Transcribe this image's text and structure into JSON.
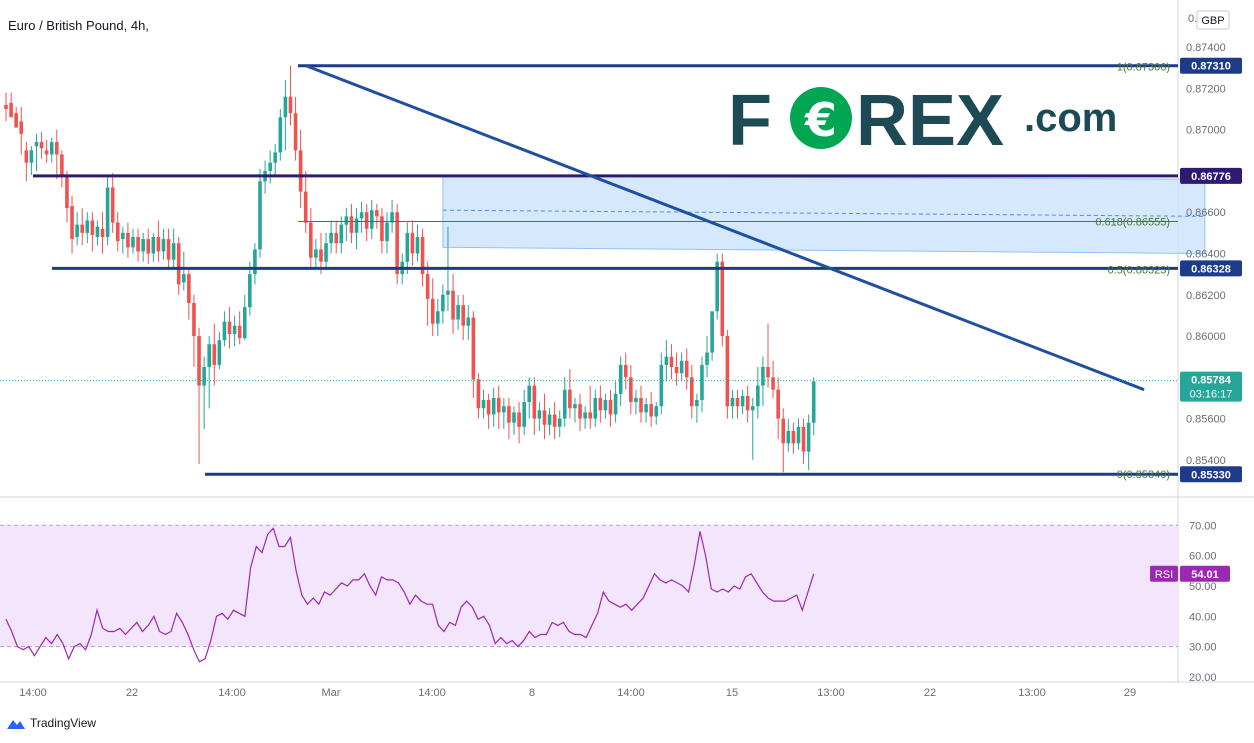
{
  "header": {
    "symbol_title": "Euro / British Pound, 4h,",
    "currency_button": "GBP",
    "top_price_clipped": "0.87600"
  },
  "logo": {
    "text_f": "F",
    "text_o_symbol": "€",
    "text_rex": "REX",
    "text_com": ".com",
    "color_dark": "#1d4a55",
    "color_green": "#00a651"
  },
  "footer": {
    "brand": "TradingView"
  },
  "colors": {
    "bull": "#26a69a",
    "bear": "#ef5350",
    "trendline": "#1e4fa0",
    "resistance": "#1e3a8a",
    "hline_purple": "#2e1a73",
    "fib_green": "#4a7a2c",
    "zone_fill": "#cfe5fb",
    "rsi_line": "#9c27b0",
    "rsi_band": "#f3e5fb",
    "label_blue": "#1e3a8a",
    "label_purple": "#2e1a73",
    "label_teal": "#26a69a",
    "rsi_label": "#9c27b0"
  },
  "chart_data": {
    "type": "candlestick",
    "symbol": "Euro / British Pound",
    "timeframe": "4h",
    "y_ticks": [
      "0.87400",
      "0.87200",
      "0.87000",
      "0.86600",
      "0.86400",
      "0.86200",
      "0.86000",
      "0.85600",
      "0.85400"
    ],
    "ylim": [
      0.8522,
      0.8758
    ],
    "x_tick_labels": [
      "14:00",
      "22",
      "14:00",
      "Mar",
      "14:00",
      "8",
      "14:00",
      "15",
      "13:00",
      "22",
      "13:00",
      "29"
    ],
    "price_labels": [
      {
        "value": "0.87310",
        "kind": "line"
      },
      {
        "value": "0.86776",
        "kind": "purple"
      },
      {
        "value": "0.86328",
        "kind": "line"
      },
      {
        "value": "0.85784",
        "kind": "last",
        "countdown": "03:16:17"
      },
      {
        "value": "0.85330",
        "kind": "line"
      }
    ],
    "horizontal_lines": [
      {
        "price": 0.8731,
        "style": "resistance"
      },
      {
        "price": 0.86776,
        "style": "purple"
      },
      {
        "price": 0.86328,
        "style": "resistance"
      },
      {
        "price": 0.8533,
        "style": "resistance"
      }
    ],
    "trendline": {
      "start": {
        "candle": 63,
        "price": 0.8731
      },
      "end": {
        "candle": 226,
        "price": 0.8574
      }
    },
    "fib_levels": [
      {
        "label": "1(0.87306)",
        "price": 0.87306
      },
      {
        "label": "0.618(0.86555)",
        "price": 0.86555
      },
      {
        "label": "0.5(0.86323)",
        "price": 0.86323
      },
      {
        "label": "0(0.85340)",
        "price": 0.8534
      }
    ],
    "zone": {
      "start_candle": 86,
      "end_candle": 236,
      "top_start": 0.86776,
      "top_end": 0.8676,
      "bottom_start": 0.8643,
      "bottom_end": 0.864,
      "mid_start": 0.8661,
      "mid_end": 0.8658
    },
    "candles": [
      [
        0.8712,
        0.8718,
        0.871,
        0.8704
      ],
      [
        0.8713,
        0.8718,
        0.8706,
        0.8708
      ],
      [
        0.8708,
        0.8711,
        0.8701,
        0.8703
      ],
      [
        0.8704,
        0.8711,
        0.8698,
        0.8688
      ],
      [
        0.869,
        0.8694,
        0.8684,
        0.8675
      ],
      [
        0.8684,
        0.8692,
        0.869,
        0.8678
      ],
      [
        0.8692,
        0.8698,
        0.8694,
        0.868
      ],
      [
        0.8694,
        0.8699,
        0.8691,
        0.8686
      ],
      [
        0.869,
        0.8695,
        0.8688,
        0.8684
      ],
      [
        0.8688,
        0.8696,
        0.8694,
        0.8684
      ],
      [
        0.8694,
        0.87,
        0.8688,
        0.8676
      ],
      [
        0.8688,
        0.869,
        0.8677,
        0.8672
      ],
      [
        0.8677,
        0.868,
        0.8662,
        0.8655
      ],
      [
        0.8663,
        0.8668,
        0.8647,
        0.864
      ],
      [
        0.8648,
        0.866,
        0.8654,
        0.8644
      ],
      [
        0.8654,
        0.8662,
        0.865,
        0.8644
      ],
      [
        0.865,
        0.866,
        0.8656,
        0.8645
      ],
      [
        0.8656,
        0.866,
        0.8649,
        0.8641
      ],
      [
        0.8648,
        0.8656,
        0.8653,
        0.8644
      ],
      [
        0.8652,
        0.866,
        0.8648,
        0.864
      ],
      [
        0.8648,
        0.8678,
        0.8672,
        0.8644
      ],
      [
        0.8672,
        0.8679,
        0.8655,
        0.865
      ],
      [
        0.8655,
        0.866,
        0.8646,
        0.8641
      ],
      [
        0.8647,
        0.8653,
        0.865,
        0.864
      ],
      [
        0.865,
        0.8655,
        0.8643,
        0.8638
      ],
      [
        0.8643,
        0.8652,
        0.8648,
        0.864
      ],
      [
        0.8648,
        0.8652,
        0.8641,
        0.8636
      ],
      [
        0.8641,
        0.865,
        0.8647,
        0.8636
      ],
      [
        0.8647,
        0.8652,
        0.864,
        0.8635
      ],
      [
        0.864,
        0.865,
        0.8648,
        0.8636
      ],
      [
        0.8648,
        0.8656,
        0.8641,
        0.8636
      ],
      [
        0.8641,
        0.8652,
        0.8647,
        0.8637
      ],
      [
        0.8647,
        0.8652,
        0.8637,
        0.8632
      ],
      [
        0.8637,
        0.8652,
        0.8645,
        0.8633
      ],
      [
        0.8645,
        0.8648,
        0.8625,
        0.862
      ],
      [
        0.8626,
        0.8641,
        0.863,
        0.8622
      ],
      [
        0.863,
        0.8633,
        0.8616,
        0.8608
      ],
      [
        0.8616,
        0.862,
        0.86,
        0.8585
      ],
      [
        0.86,
        0.8604,
        0.8576,
        0.8538
      ],
      [
        0.8576,
        0.859,
        0.8585,
        0.8555
      ],
      [
        0.8585,
        0.86,
        0.8596,
        0.8565
      ],
      [
        0.8596,
        0.8606,
        0.8586,
        0.8576
      ],
      [
        0.8586,
        0.8602,
        0.8598,
        0.8584
      ],
      [
        0.8598,
        0.8612,
        0.8607,
        0.8595
      ],
      [
        0.8607,
        0.8614,
        0.8601,
        0.8594
      ],
      [
        0.8601,
        0.861,
        0.8605,
        0.8595
      ],
      [
        0.8605,
        0.8612,
        0.8599,
        0.8596
      ],
      [
        0.8599,
        0.862,
        0.8614,
        0.8598
      ],
      [
        0.8614,
        0.8636,
        0.863,
        0.861
      ],
      [
        0.863,
        0.8645,
        0.8642,
        0.8625
      ],
      [
        0.8642,
        0.8681,
        0.8675,
        0.8638
      ],
      [
        0.8675,
        0.8685,
        0.868,
        0.8669
      ],
      [
        0.868,
        0.869,
        0.8684,
        0.8674
      ],
      [
        0.8684,
        0.8693,
        0.8689,
        0.8678
      ],
      [
        0.8689,
        0.871,
        0.8706,
        0.8685
      ],
      [
        0.8706,
        0.8724,
        0.8716,
        0.869
      ],
      [
        0.8716,
        0.8731,
        0.8708,
        0.8702
      ],
      [
        0.8708,
        0.8716,
        0.869,
        0.8685
      ],
      [
        0.869,
        0.87,
        0.867,
        0.8662
      ],
      [
        0.867,
        0.868,
        0.8655,
        0.865
      ],
      [
        0.8655,
        0.8662,
        0.8638,
        0.8632
      ],
      [
        0.8638,
        0.8647,
        0.8642,
        0.8633
      ],
      [
        0.8642,
        0.865,
        0.8636,
        0.863
      ],
      [
        0.8636,
        0.865,
        0.8645,
        0.8632
      ],
      [
        0.8645,
        0.8656,
        0.865,
        0.864
      ],
      [
        0.865,
        0.8656,
        0.8645,
        0.864
      ],
      [
        0.8645,
        0.8658,
        0.8654,
        0.864
      ],
      [
        0.8654,
        0.8662,
        0.8658,
        0.8646
      ],
      [
        0.8658,
        0.8664,
        0.865,
        0.8645
      ],
      [
        0.865,
        0.8662,
        0.8657,
        0.8642
      ],
      [
        0.8657,
        0.8665,
        0.866,
        0.865
      ],
      [
        0.866,
        0.8664,
        0.8652,
        0.8646
      ],
      [
        0.8652,
        0.8666,
        0.8661,
        0.8647
      ],
      [
        0.8661,
        0.8664,
        0.8658,
        0.8652
      ],
      [
        0.8658,
        0.8662,
        0.8646,
        0.864
      ],
      [
        0.8646,
        0.866,
        0.8655,
        0.864
      ],
      [
        0.8655,
        0.8666,
        0.866,
        0.865
      ],
      [
        0.866,
        0.8664,
        0.863,
        0.8625
      ],
      [
        0.863,
        0.864,
        0.8636,
        0.8625
      ],
      [
        0.8636,
        0.8655,
        0.865,
        0.863
      ],
      [
        0.865,
        0.8656,
        0.864,
        0.8634
      ],
      [
        0.864,
        0.8654,
        0.8648,
        0.8636
      ],
      [
        0.8648,
        0.8652,
        0.863,
        0.8624
      ],
      [
        0.863,
        0.8636,
        0.8618,
        0.8605
      ],
      [
        0.8618,
        0.8628,
        0.8606,
        0.86
      ],
      [
        0.8606,
        0.8618,
        0.8612,
        0.86
      ],
      [
        0.8612,
        0.8625,
        0.862,
        0.8606
      ],
      [
        0.862,
        0.8653,
        0.8622,
        0.8612
      ],
      [
        0.8622,
        0.863,
        0.8608,
        0.8601
      ],
      [
        0.8608,
        0.862,
        0.8615,
        0.8603
      ],
      [
        0.8615,
        0.862,
        0.8605,
        0.8598
      ],
      [
        0.8605,
        0.8615,
        0.8609,
        0.8598
      ],
      [
        0.8609,
        0.8612,
        0.8579,
        0.857
      ],
      [
        0.8579,
        0.8582,
        0.8565,
        0.856
      ],
      [
        0.8565,
        0.8574,
        0.8569,
        0.856
      ],
      [
        0.8569,
        0.8572,
        0.8562,
        0.8555
      ],
      [
        0.8562,
        0.8575,
        0.857,
        0.8556
      ],
      [
        0.857,
        0.8576,
        0.8563,
        0.8555
      ],
      [
        0.8563,
        0.857,
        0.8566,
        0.8555
      ],
      [
        0.8566,
        0.857,
        0.8558,
        0.855
      ],
      [
        0.8558,
        0.8566,
        0.8563,
        0.8552
      ],
      [
        0.8563,
        0.8568,
        0.8556,
        0.8548
      ],
      [
        0.8556,
        0.8574,
        0.8568,
        0.8552
      ],
      [
        0.8568,
        0.858,
        0.8576,
        0.856
      ],
      [
        0.8576,
        0.858,
        0.856,
        0.8552
      ],
      [
        0.856,
        0.8568,
        0.8564,
        0.8554
      ],
      [
        0.8564,
        0.8572,
        0.8557,
        0.855
      ],
      [
        0.8557,
        0.8565,
        0.8562,
        0.8552
      ],
      [
        0.8562,
        0.8568,
        0.8556,
        0.855
      ],
      [
        0.8556,
        0.8564,
        0.856,
        0.8551
      ],
      [
        0.856,
        0.858,
        0.8574,
        0.8556
      ],
      [
        0.8574,
        0.8584,
        0.8565,
        0.856
      ],
      [
        0.8565,
        0.857,
        0.8567,
        0.8558
      ],
      [
        0.8567,
        0.8572,
        0.856,
        0.8554
      ],
      [
        0.856,
        0.8566,
        0.8563,
        0.8555
      ],
      [
        0.8563,
        0.8576,
        0.856,
        0.8555
      ],
      [
        0.856,
        0.8574,
        0.857,
        0.8556
      ],
      [
        0.857,
        0.8576,
        0.8564,
        0.8558
      ],
      [
        0.8564,
        0.8572,
        0.8569,
        0.856
      ],
      [
        0.8569,
        0.8574,
        0.8562,
        0.8556
      ],
      [
        0.8562,
        0.8578,
        0.8572,
        0.8558
      ],
      [
        0.8572,
        0.859,
        0.8586,
        0.8566
      ],
      [
        0.8586,
        0.8592,
        0.858,
        0.8574
      ],
      [
        0.858,
        0.8586,
        0.8568,
        0.8562
      ],
      [
        0.8568,
        0.8574,
        0.857,
        0.8562
      ],
      [
        0.857,
        0.8576,
        0.8563,
        0.8558
      ],
      [
        0.8563,
        0.857,
        0.8567,
        0.8558
      ],
      [
        0.8567,
        0.8573,
        0.8561,
        0.8556
      ],
      [
        0.8561,
        0.8568,
        0.8566,
        0.8557
      ],
      [
        0.8566,
        0.8592,
        0.8586,
        0.8562
      ],
      [
        0.8586,
        0.8598,
        0.859,
        0.8578
      ],
      [
        0.859,
        0.8596,
        0.8585,
        0.8579
      ],
      [
        0.8585,
        0.8592,
        0.8582,
        0.8576
      ],
      [
        0.8582,
        0.8592,
        0.8588,
        0.8578
      ],
      [
        0.8588,
        0.8594,
        0.858,
        0.8574
      ],
      [
        0.858,
        0.8586,
        0.8566,
        0.856
      ],
      [
        0.8566,
        0.8572,
        0.8569,
        0.8558
      ],
      [
        0.8569,
        0.859,
        0.8586,
        0.8563
      ],
      [
        0.8586,
        0.86,
        0.8592,
        0.858
      ],
      [
        0.8592,
        0.8606,
        0.8612,
        0.8588
      ],
      [
        0.8612,
        0.864,
        0.8636,
        0.8608
      ],
      [
        0.8636,
        0.864,
        0.86,
        0.8595
      ],
      [
        0.86,
        0.8603,
        0.8566,
        0.856
      ],
      [
        0.8566,
        0.8574,
        0.857,
        0.856
      ],
      [
        0.857,
        0.8574,
        0.8566,
        0.856
      ],
      [
        0.8566,
        0.8574,
        0.8571,
        0.8562
      ],
      [
        0.8571,
        0.8576,
        0.8564,
        0.8558
      ],
      [
        0.8564,
        0.857,
        0.8566,
        0.854
      ],
      [
        0.8566,
        0.8585,
        0.8576,
        0.856
      ],
      [
        0.8576,
        0.859,
        0.8585,
        0.8566
      ],
      [
        0.8585,
        0.8606,
        0.858,
        0.8575
      ],
      [
        0.858,
        0.8588,
        0.8574,
        0.857
      ],
      [
        0.8574,
        0.858,
        0.856,
        0.855
      ],
      [
        0.856,
        0.8565,
        0.8548,
        0.8534
      ],
      [
        0.8548,
        0.856,
        0.8554,
        0.8544
      ],
      [
        0.8554,
        0.8558,
        0.8548,
        0.8543
      ],
      [
        0.8548,
        0.856,
        0.8556,
        0.8545
      ],
      [
        0.8556,
        0.856,
        0.8544,
        0.8538
      ],
      [
        0.8544,
        0.8562,
        0.8558,
        0.8535
      ],
      [
        0.8558,
        0.858,
        0.8578,
        0.8552
      ]
    ],
    "rsi": {
      "label": "RSI",
      "value": "54.01",
      "y_ticks": [
        "70.00",
        "60.00",
        "50.00",
        "40.00",
        "30.00",
        "20.00"
      ],
      "ylim": [
        19,
        79
      ],
      "band": [
        30,
        70
      ],
      "values": [
        39,
        35,
        30,
        29,
        30,
        27,
        30,
        33,
        31,
        34,
        31,
        26,
        30,
        31,
        29,
        34,
        42,
        36,
        35,
        35,
        36,
        34,
        36,
        38,
        35,
        37,
        40,
        35,
        34,
        35,
        41,
        38,
        34,
        29,
        25,
        26,
        32,
        40,
        41,
        39,
        42,
        41,
        40,
        56,
        63,
        61,
        67,
        69,
        63,
        63,
        66,
        55,
        47,
        44,
        46,
        44,
        48,
        47,
        49,
        51,
        50,
        52,
        52,
        54,
        50,
        47,
        53,
        52,
        52,
        51,
        48,
        44,
        47,
        45,
        44,
        44,
        37,
        35,
        38,
        37,
        43,
        45,
        43,
        39,
        40,
        37,
        31,
        33,
        31,
        32,
        30,
        32,
        35,
        33,
        34,
        34,
        38,
        37,
        38,
        35,
        34,
        34,
        33,
        37,
        41,
        48,
        45,
        44,
        43,
        44,
        42,
        44,
        46,
        50,
        54,
        52,
        51,
        52,
        51,
        50,
        48,
        57,
        68,
        60,
        49,
        48,
        49,
        48,
        50,
        49,
        53,
        54,
        51,
        48,
        46,
        45,
        45,
        45,
        46,
        47,
        42,
        48,
        54
      ]
    }
  }
}
